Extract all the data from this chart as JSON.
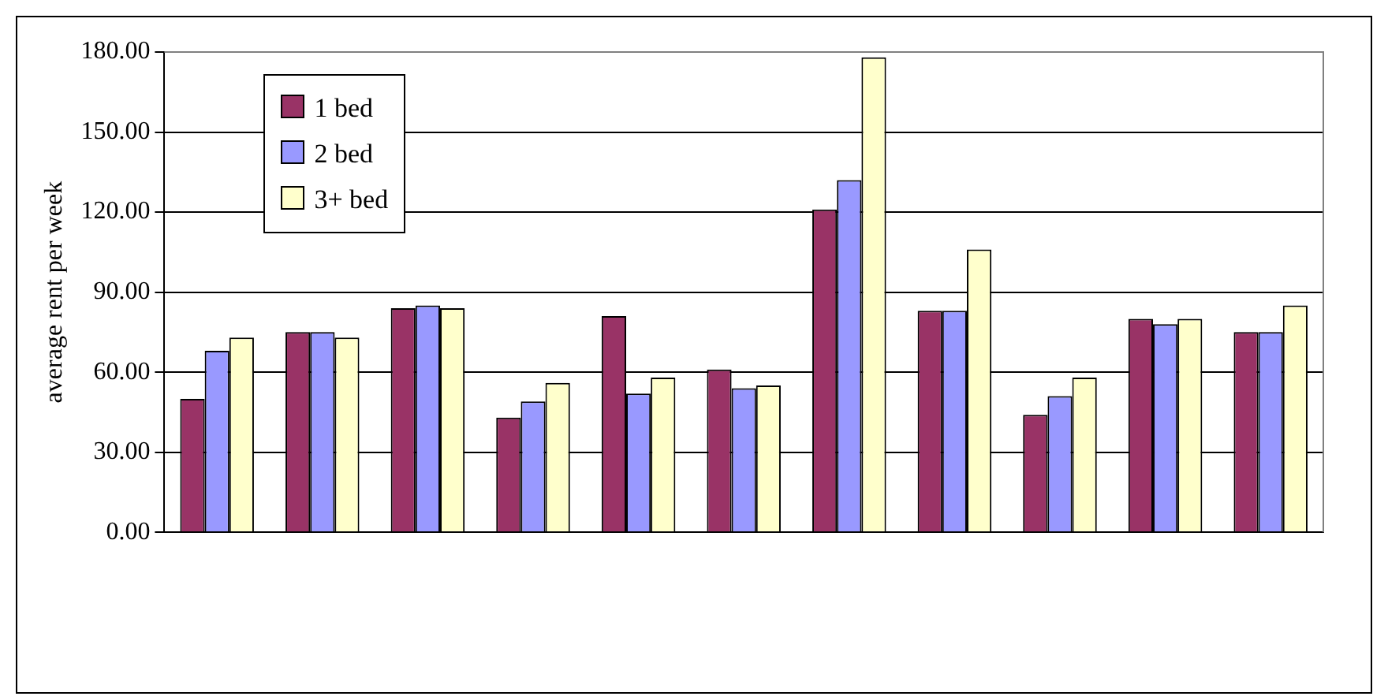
{
  "chart_data": {
    "type": "bar",
    "ylabel": "average rent per week",
    "categories": [
      null,
      null,
      null,
      null,
      null,
      null,
      null,
      null,
      null,
      null,
      null
    ],
    "series": [
      {
        "name": "1 bed",
        "color": "#993366",
        "values": [
          50,
          75,
          84,
          43,
          81,
          61,
          121,
          83,
          44,
          80,
          75
        ]
      },
      {
        "name": "2 bed",
        "color": "#9999ff",
        "values": [
          68,
          75,
          85,
          49,
          52,
          54,
          132,
          83,
          51,
          78,
          75
        ]
      },
      {
        "name": "3+ bed",
        "color": "#ffffcc",
        "values": [
          73,
          73,
          84,
          56,
          58,
          55,
          178,
          106,
          58,
          80,
          85
        ]
      }
    ],
    "ylim": [
      0,
      180
    ],
    "yticks": [
      {
        "value": 0,
        "label": "0.00"
      },
      {
        "value": 30,
        "label": "30.00"
      },
      {
        "value": 60,
        "label": "60.00"
      },
      {
        "value": 90,
        "label": "90.00"
      },
      {
        "value": 120,
        "label": "120.00"
      },
      {
        "value": 150,
        "label": "150.00"
      },
      {
        "value": 180,
        "label": "180.00"
      }
    ],
    "grid": "y",
    "legend": "top left"
  }
}
